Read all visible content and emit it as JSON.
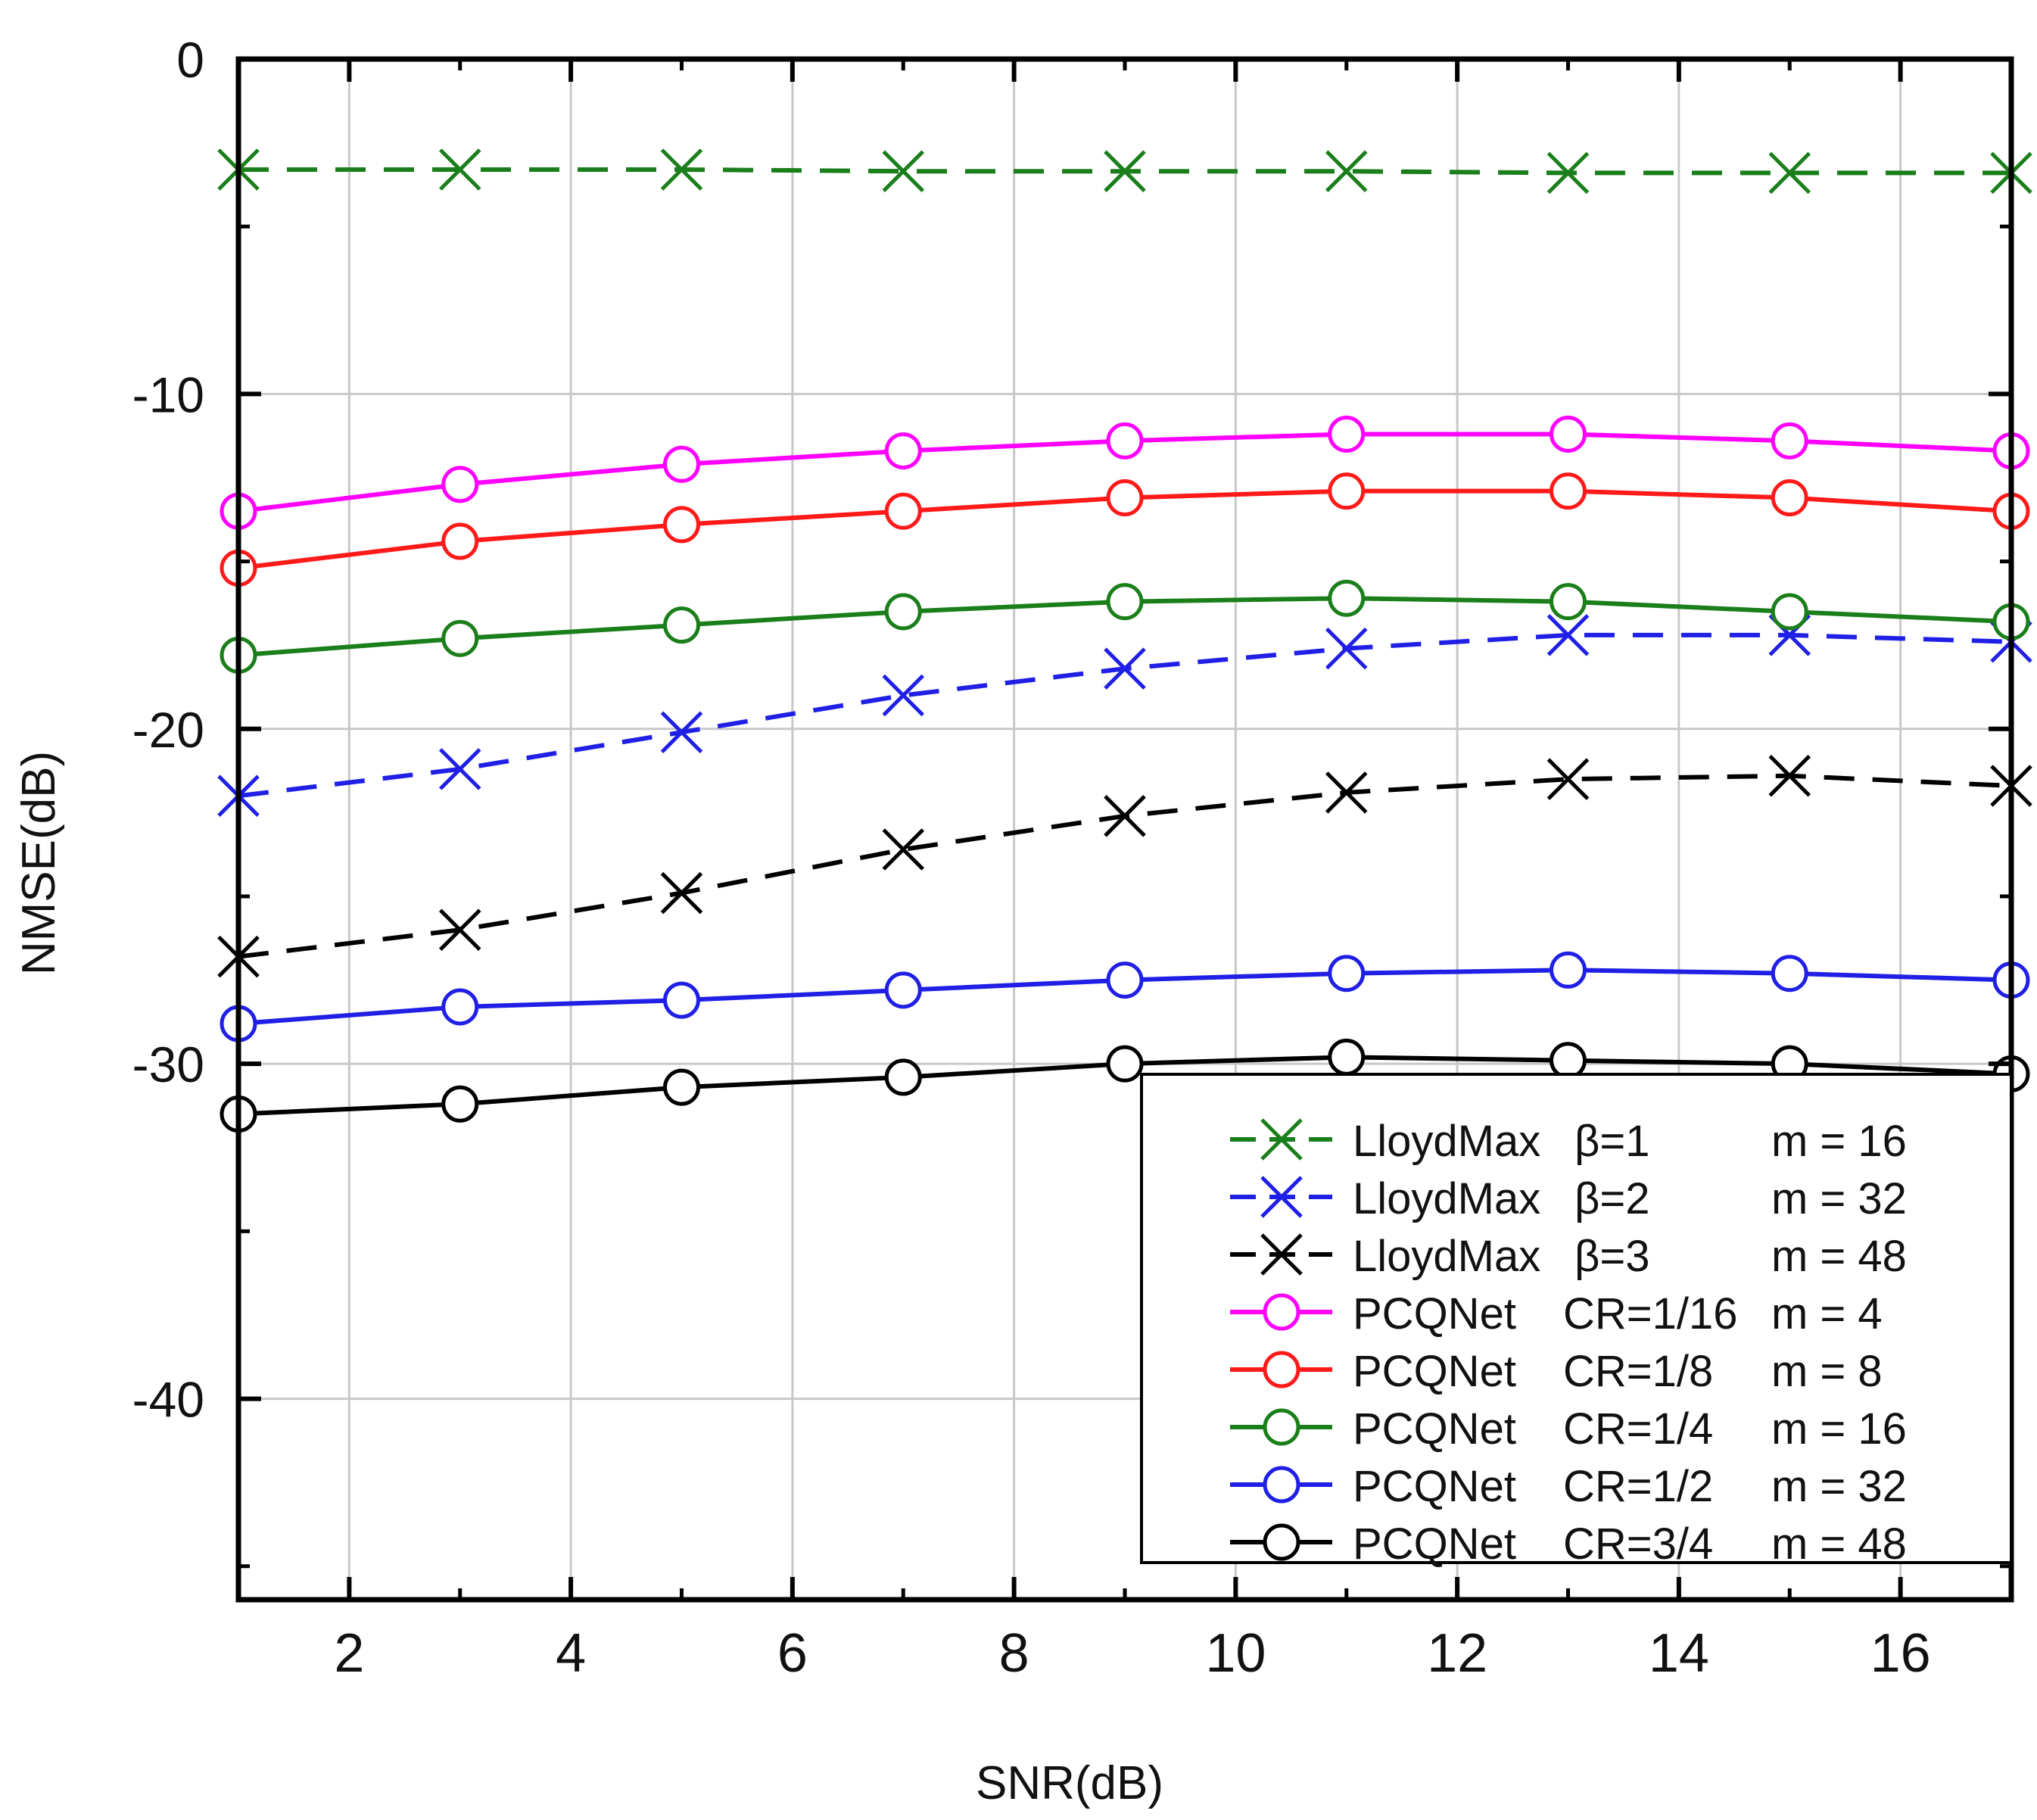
{
  "chart_data": {
    "type": "line",
    "title": "",
    "xlabel": "SNR(dB)",
    "ylabel": "NMSE(dB)",
    "xlim": [
      1,
      17
    ],
    "ylim": [
      -46,
      0
    ],
    "grid": true,
    "legend_position": "bottom-right",
    "x": [
      1,
      3,
      5,
      7,
      9,
      11,
      13,
      15,
      17
    ],
    "x_ticks": [
      2,
      4,
      6,
      8,
      10,
      12,
      14,
      16
    ],
    "y_ticks": [
      0,
      -10,
      -20,
      -30,
      -40
    ],
    "series": [
      {
        "name": "LloydMax",
        "param": "β=1",
        "m": "m = 16",
        "color": "#1a7f1a",
        "dashed": true,
        "marker": "x",
        "values": [
          -3.3,
          -3.3,
          -3.3,
          -3.35,
          -3.35,
          -3.35,
          -3.4,
          -3.4,
          -3.4
        ]
      },
      {
        "name": "LloydMax",
        "param": "β=2",
        "m": "m = 32",
        "color": "#1f1fe6",
        "dashed": true,
        "marker": "x",
        "values": [
          -22.0,
          -21.2,
          -20.1,
          -19.0,
          -18.2,
          -17.6,
          -17.2,
          -17.2,
          -17.4
        ]
      },
      {
        "name": "LloydMax",
        "param": "β=3",
        "m": "m = 48",
        "color": "#000000",
        "dashed": true,
        "marker": "x",
        "values": [
          -26.8,
          -26.0,
          -24.9,
          -23.6,
          -22.6,
          -21.9,
          -21.5,
          -21.4,
          -21.7
        ]
      },
      {
        "name": "PCQNet",
        "param": "CR=1/16",
        "m": "m = 4",
        "color": "#ff00ff",
        "dashed": false,
        "marker": "o",
        "values": [
          -13.5,
          -12.7,
          -12.1,
          -11.7,
          -11.4,
          -11.2,
          -11.2,
          -11.4,
          -11.7
        ]
      },
      {
        "name": "PCQNet",
        "param": "CR=1/8",
        "m": "m = 8",
        "color": "#ff1a1a",
        "dashed": false,
        "marker": "o",
        "values": [
          -15.2,
          -14.4,
          -13.9,
          -13.5,
          -13.1,
          -12.9,
          -12.9,
          -13.1,
          -13.5
        ]
      },
      {
        "name": "PCQNet",
        "param": "CR=1/4",
        "m": "m = 16",
        "color": "#1a7f1a",
        "dashed": false,
        "marker": "o",
        "values": [
          -17.8,
          -17.3,
          -16.9,
          -16.5,
          -16.2,
          -16.1,
          -16.2,
          -16.5,
          -16.8
        ]
      },
      {
        "name": "PCQNet",
        "param": "CR=1/2",
        "m": "m = 32",
        "color": "#1f1fe6",
        "dashed": false,
        "marker": "o",
        "values": [
          -28.8,
          -28.3,
          -28.1,
          -27.8,
          -27.5,
          -27.3,
          -27.2,
          -27.3,
          -27.5
        ]
      },
      {
        "name": "PCQNet",
        "param": "CR=3/4",
        "m": "m = 48",
        "color": "#000000",
        "dashed": false,
        "marker": "o",
        "values": [
          -31.5,
          -31.2,
          -30.7,
          -30.4,
          -30.0,
          -29.8,
          -29.9,
          -30.0,
          -30.3
        ]
      }
    ]
  }
}
